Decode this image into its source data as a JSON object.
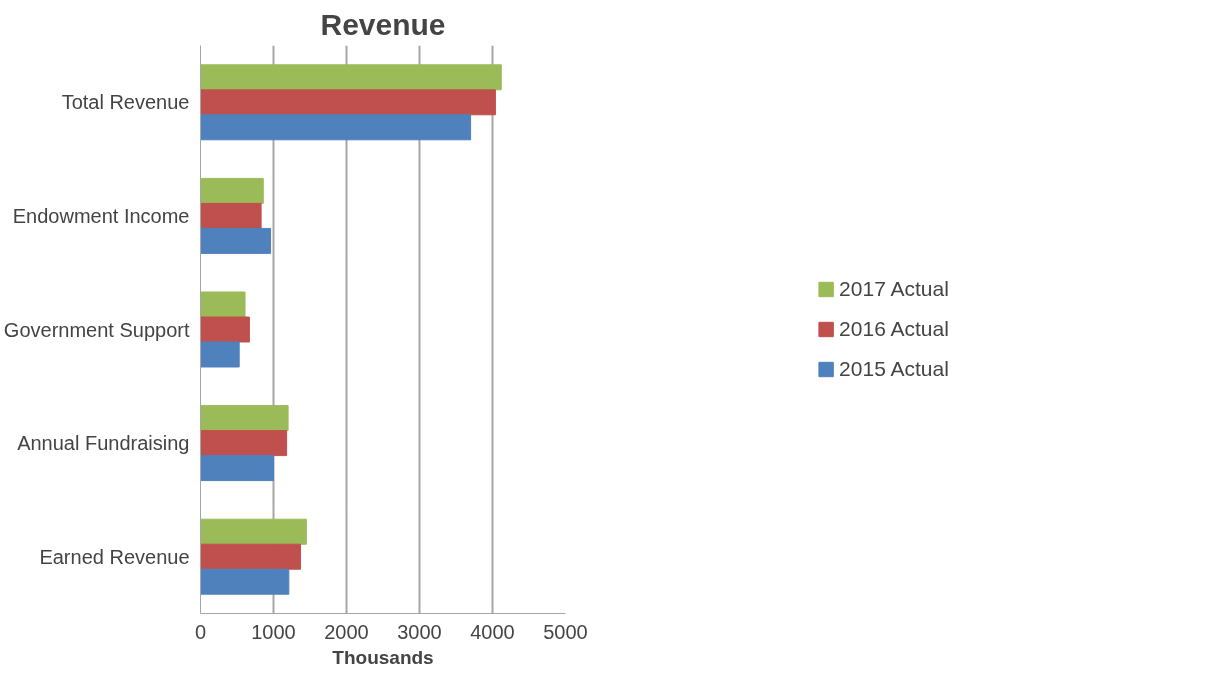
{
  "chart_data": {
    "type": "bar",
    "orientation": "horizontal",
    "title": "Revenue",
    "xlabel": "Thousands",
    "categories": [
      "Total Revenue",
      "Endowment Income",
      "Government Support",
      "Annual Fundraising",
      "Earned Revenue"
    ],
    "series": [
      {
        "name": "2017 Actual",
        "color": "#9bbb59",
        "values": [
          4120,
          860,
          610,
          1200,
          1450
        ]
      },
      {
        "name": "2016 Actual",
        "color": "#c0504d",
        "values": [
          4040,
          830,
          670,
          1180,
          1370
        ]
      },
      {
        "name": "2015 Actual",
        "color": "#4f81bd",
        "values": [
          3700,
          960,
          530,
          1000,
          1210
        ]
      }
    ],
    "xlim": [
      0,
      5000
    ],
    "xticks": [
      0,
      1000,
      2000,
      3000,
      4000,
      5000
    ],
    "grid": "x",
    "legend": "right"
  }
}
